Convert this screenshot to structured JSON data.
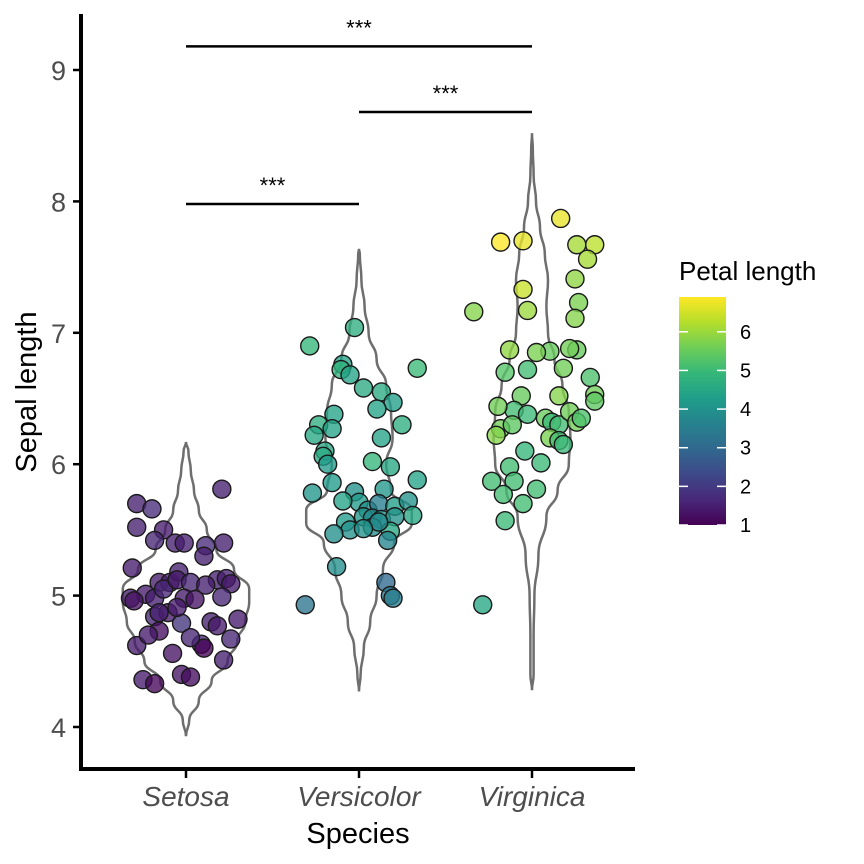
{
  "chart_data": {
    "type": "scatter",
    "subtype": "violin-jitter",
    "xlabel": "Species",
    "ylabel": "Sepal length",
    "categories": [
      "Setosa",
      "Versicolor",
      "Virginica"
    ],
    "ylim": [
      3.7,
      9.5
    ],
    "yticks": [
      4,
      5,
      6,
      7,
      8,
      9
    ],
    "grid": false,
    "legend": {
      "title": "Petal length",
      "placement": "right",
      "type": "colorbar",
      "colormap": "viridis",
      "range": [
        1,
        6.9
      ],
      "ticks": [
        1,
        2,
        3,
        4,
        5,
        6
      ]
    },
    "colors": {
      "viridis": [
        "#440154",
        "#482878",
        "#3e4989",
        "#31688e",
        "#26828e",
        "#1f9e89",
        "#35b779",
        "#6ece58",
        "#b5de2b",
        "#fde725"
      ],
      "violin_outline": "#6e6e6e",
      "axis": "#000000",
      "point_outline": "#1a1a1a"
    },
    "significance": [
      {
        "from": "Setosa",
        "to": "Versicolor",
        "y": 7.98,
        "label": "***"
      },
      {
        "from": "Versicolor",
        "to": "Virginica",
        "y": 8.68,
        "label": "***"
      },
      {
        "from": "Setosa",
        "to": "Virginica",
        "y": 9.18,
        "label": "***"
      }
    ],
    "series": [
      {
        "category": "Setosa",
        "points": [
          [
            -0.55,
            5.7,
            1.5
          ],
          [
            -0.55,
            5.52,
            1.5
          ],
          [
            -0.38,
            5.66,
            1.7
          ],
          [
            -0.25,
            5.5,
            1.4
          ],
          [
            -0.6,
            5.21,
            1.4
          ],
          [
            -0.12,
            5.4,
            1.5
          ],
          [
            -0.35,
            5.42,
            1.6
          ],
          [
            -0.02,
            5.4,
            1.5
          ],
          [
            0.22,
            5.38,
            1.7
          ],
          [
            0.42,
            5.4,
            1.5
          ],
          [
            0.4,
            5.81,
            1.5
          ],
          [
            -0.3,
            5.1,
            1.4
          ],
          [
            -0.18,
            5.1,
            1.5
          ],
          [
            0.2,
            5.3,
            1.5
          ],
          [
            -0.08,
            5.18,
            1.5
          ],
          [
            -0.45,
            5.01,
            1.4
          ],
          [
            -0.62,
            4.98,
            1.4
          ],
          [
            -0.58,
            4.96,
            1.3
          ],
          [
            -0.35,
            4.98,
            1.5
          ],
          [
            -0.25,
            5.05,
            1.6
          ],
          [
            -0.1,
            5.12,
            1.4
          ],
          [
            0.05,
            5.1,
            1.6
          ],
          [
            0.35,
            5.12,
            1.5
          ],
          [
            0.45,
            5.13,
            1.5
          ],
          [
            0.5,
            5.09,
            1.4
          ],
          [
            0.22,
            5.08,
            1.5
          ],
          [
            -0.02,
            4.98,
            1.4
          ],
          [
            0.1,
            4.97,
            1.3
          ],
          [
            -0.35,
            4.84,
            1.6
          ],
          [
            -0.2,
            4.87,
            1.4
          ],
          [
            -0.05,
            4.79,
            1.9
          ],
          [
            -0.3,
            4.73,
            1.2
          ],
          [
            0.28,
            4.8,
            1.5
          ],
          [
            0.35,
            4.77,
            1.4
          ],
          [
            0.4,
            4.99,
            1.6
          ],
          [
            0.58,
            4.82,
            1.4
          ],
          [
            0.17,
            4.63,
            1.6
          ],
          [
            -0.55,
            4.62,
            1.4
          ],
          [
            -0.15,
            4.56,
            1.3
          ],
          [
            0.2,
            4.6,
            1.0
          ],
          [
            0.42,
            4.51,
            1.5
          ],
          [
            0.5,
            4.67,
            1.6
          ],
          [
            -0.48,
            4.36,
            1.4
          ],
          [
            -0.35,
            4.33,
            1.1
          ],
          [
            -0.05,
            4.4,
            1.3
          ],
          [
            0.05,
            4.38,
            1.2
          ],
          [
            -0.42,
            4.7,
            1.4
          ],
          [
            0.05,
            4.68,
            1.6
          ],
          [
            -0.3,
            4.87,
            1.5
          ],
          [
            -0.1,
            4.91,
            1.4
          ]
        ],
        "violin": {
          "ys": [
            3.93,
            4.05,
            4.2,
            4.35,
            4.5,
            4.65,
            4.8,
            4.95,
            5.05,
            5.2,
            5.35,
            5.5,
            5.65,
            5.8,
            5.95,
            6.1,
            6.17
          ],
          "widths": [
            0.0,
            0.04,
            0.16,
            0.32,
            0.52,
            0.64,
            0.74,
            0.79,
            0.79,
            0.6,
            0.38,
            0.26,
            0.16,
            0.1,
            0.06,
            0.03,
            0.0
          ]
        }
      },
      {
        "category": "Versicolor",
        "points": [
          [
            -0.55,
            6.9,
            4.9
          ],
          [
            -0.05,
            7.04,
            4.7
          ],
          [
            -0.18,
            6.76,
            4.4
          ],
          [
            -0.2,
            6.72,
            4.8
          ],
          [
            -0.1,
            6.68,
            4.4
          ],
          [
            0.25,
            6.55,
            4.6
          ],
          [
            0.05,
            6.58,
            4.6
          ],
          [
            0.65,
            6.73,
            5.0
          ],
          [
            -0.28,
            6.38,
            4.4
          ],
          [
            -0.45,
            6.3,
            4.7
          ],
          [
            -0.5,
            6.22,
            4.5
          ],
          [
            0.38,
            6.47,
            4.3
          ],
          [
            0.2,
            6.42,
            4.4
          ],
          [
            0.48,
            6.3,
            4.7
          ],
          [
            -0.3,
            6.27,
            4.4
          ],
          [
            -0.38,
            6.1,
            4.5
          ],
          [
            0.25,
            6.2,
            4.4
          ],
          [
            -0.4,
            6.06,
            4.6
          ],
          [
            -0.35,
            6.0,
            4.2
          ],
          [
            0.35,
            5.98,
            4.5
          ],
          [
            0.15,
            6.02,
            4.9
          ],
          [
            -0.3,
            5.86,
            4.2
          ],
          [
            0.65,
            5.88,
            4.4
          ],
          [
            -0.52,
            5.78,
            4.1
          ],
          [
            -0.05,
            5.79,
            4.0
          ],
          [
            0.28,
            5.81,
            4.1
          ],
          [
            0.0,
            5.71,
            4.2
          ],
          [
            0.1,
            5.65,
            3.9
          ],
          [
            0.22,
            5.7,
            3.5
          ],
          [
            0.4,
            5.68,
            4.3
          ],
          [
            0.55,
            5.72,
            4.0
          ],
          [
            0.05,
            5.6,
            4.1
          ],
          [
            0.15,
            5.59,
            3.8
          ],
          [
            0.25,
            5.58,
            4.2
          ],
          [
            0.4,
            5.6,
            4.0
          ],
          [
            0.6,
            5.61,
            4.5
          ],
          [
            -0.15,
            5.56,
            4.2
          ],
          [
            -0.1,
            5.5,
            4.0
          ],
          [
            0.15,
            5.52,
            3.9
          ],
          [
            0.35,
            5.49,
            4.5
          ],
          [
            -0.28,
            5.47,
            3.9
          ],
          [
            0.32,
            5.42,
            3.7
          ],
          [
            -0.25,
            5.22,
            3.9
          ],
          [
            -0.6,
            4.93,
            3.3
          ],
          [
            0.3,
            5.1,
            3.0
          ],
          [
            0.35,
            5.0,
            3.3
          ],
          [
            0.38,
            4.98,
            3.5
          ],
          [
            0.22,
            5.56,
            3.8
          ],
          [
            0.05,
            5.51,
            4.0
          ],
          [
            -0.18,
            5.72,
            4.4
          ]
        ],
        "violin": {
          "ys": [
            4.27,
            4.4,
            4.6,
            4.8,
            5.0,
            5.2,
            5.4,
            5.55,
            5.65,
            5.8,
            6.0,
            6.2,
            6.4,
            6.6,
            6.8,
            7.0,
            7.2,
            7.4,
            7.6,
            7.64
          ],
          "widths": [
            0.0,
            0.02,
            0.06,
            0.14,
            0.22,
            0.3,
            0.44,
            0.66,
            0.66,
            0.4,
            0.34,
            0.42,
            0.4,
            0.34,
            0.22,
            0.12,
            0.07,
            0.03,
            0.01,
            0.0
          ]
        }
      },
      {
        "category": "Virginica",
        "points": [
          [
            0.32,
            7.87,
            6.7
          ],
          [
            -0.1,
            7.7,
            6.7
          ],
          [
            -0.35,
            7.69,
            6.9
          ],
          [
            0.5,
            7.67,
            6.1
          ],
          [
            0.7,
            7.67,
            6.3
          ],
          [
            0.62,
            7.56,
            6.1
          ],
          [
            0.48,
            7.41,
            5.9
          ],
          [
            0.52,
            7.23,
            5.7
          ],
          [
            -0.65,
            7.16,
            5.8
          ],
          [
            -0.1,
            7.33,
            6.4
          ],
          [
            -0.05,
            7.17,
            6.0
          ],
          [
            0.48,
            7.11,
            5.8
          ],
          [
            -0.25,
            6.87,
            5.9
          ],
          [
            0.5,
            6.87,
            5.5
          ],
          [
            0.42,
            6.88,
            5.6
          ],
          [
            0.2,
            6.86,
            5.5
          ],
          [
            0.05,
            6.85,
            5.7
          ],
          [
            -0.05,
            6.72,
            5.1
          ],
          [
            -0.3,
            6.7,
            5.3
          ],
          [
            0.35,
            6.73,
            5.6
          ],
          [
            0.65,
            6.66,
            5.2
          ],
          [
            0.7,
            6.53,
            5.6
          ],
          [
            0.7,
            6.48,
            5.4
          ],
          [
            0.3,
            6.52,
            5.8
          ],
          [
            -0.12,
            6.52,
            5.5
          ],
          [
            -0.2,
            6.41,
            5.1
          ],
          [
            -0.38,
            6.44,
            5.6
          ],
          [
            -0.05,
            6.38,
            5.0
          ],
          [
            0.15,
            6.35,
            5.5
          ],
          [
            0.22,
            6.32,
            5.0
          ],
          [
            0.3,
            6.3,
            5.1
          ],
          [
            0.42,
            6.4,
            5.6
          ],
          [
            0.5,
            6.32,
            5.6
          ],
          [
            0.55,
            6.35,
            5.2
          ],
          [
            -0.35,
            6.27,
            5.6
          ],
          [
            -0.22,
            6.3,
            5.4
          ],
          [
            -0.4,
            6.22,
            5.8
          ],
          [
            0.2,
            6.2,
            5.7
          ],
          [
            0.3,
            6.18,
            5.1
          ],
          [
            0.35,
            6.15,
            5.0
          ],
          [
            -0.08,
            6.1,
            4.9
          ],
          [
            -0.25,
            5.98,
            5.1
          ],
          [
            0.1,
            6.01,
            5.0
          ],
          [
            -0.2,
            5.87,
            5.1
          ],
          [
            -0.45,
            5.87,
            5.1
          ],
          [
            -0.32,
            5.77,
            5.1
          ],
          [
            -0.1,
            5.7,
            5.1
          ],
          [
            0.05,
            5.81,
            5.1
          ],
          [
            -0.3,
            5.57,
            5.0
          ],
          [
            -0.55,
            4.93,
            4.5
          ]
        ],
        "violin": {
          "ys": [
            4.28,
            4.4,
            4.7,
            5.0,
            5.3,
            5.6,
            5.8,
            6.0,
            6.2,
            6.4,
            6.6,
            6.8,
            7.0,
            7.2,
            7.4,
            7.6,
            7.8,
            8.0,
            8.2,
            8.4,
            8.52
          ],
          "widths": [
            0.0,
            0.02,
            0.02,
            0.03,
            0.08,
            0.18,
            0.32,
            0.46,
            0.48,
            0.46,
            0.38,
            0.28,
            0.2,
            0.18,
            0.2,
            0.16,
            0.1,
            0.05,
            0.02,
            0.01,
            0.0
          ]
        }
      }
    ]
  }
}
